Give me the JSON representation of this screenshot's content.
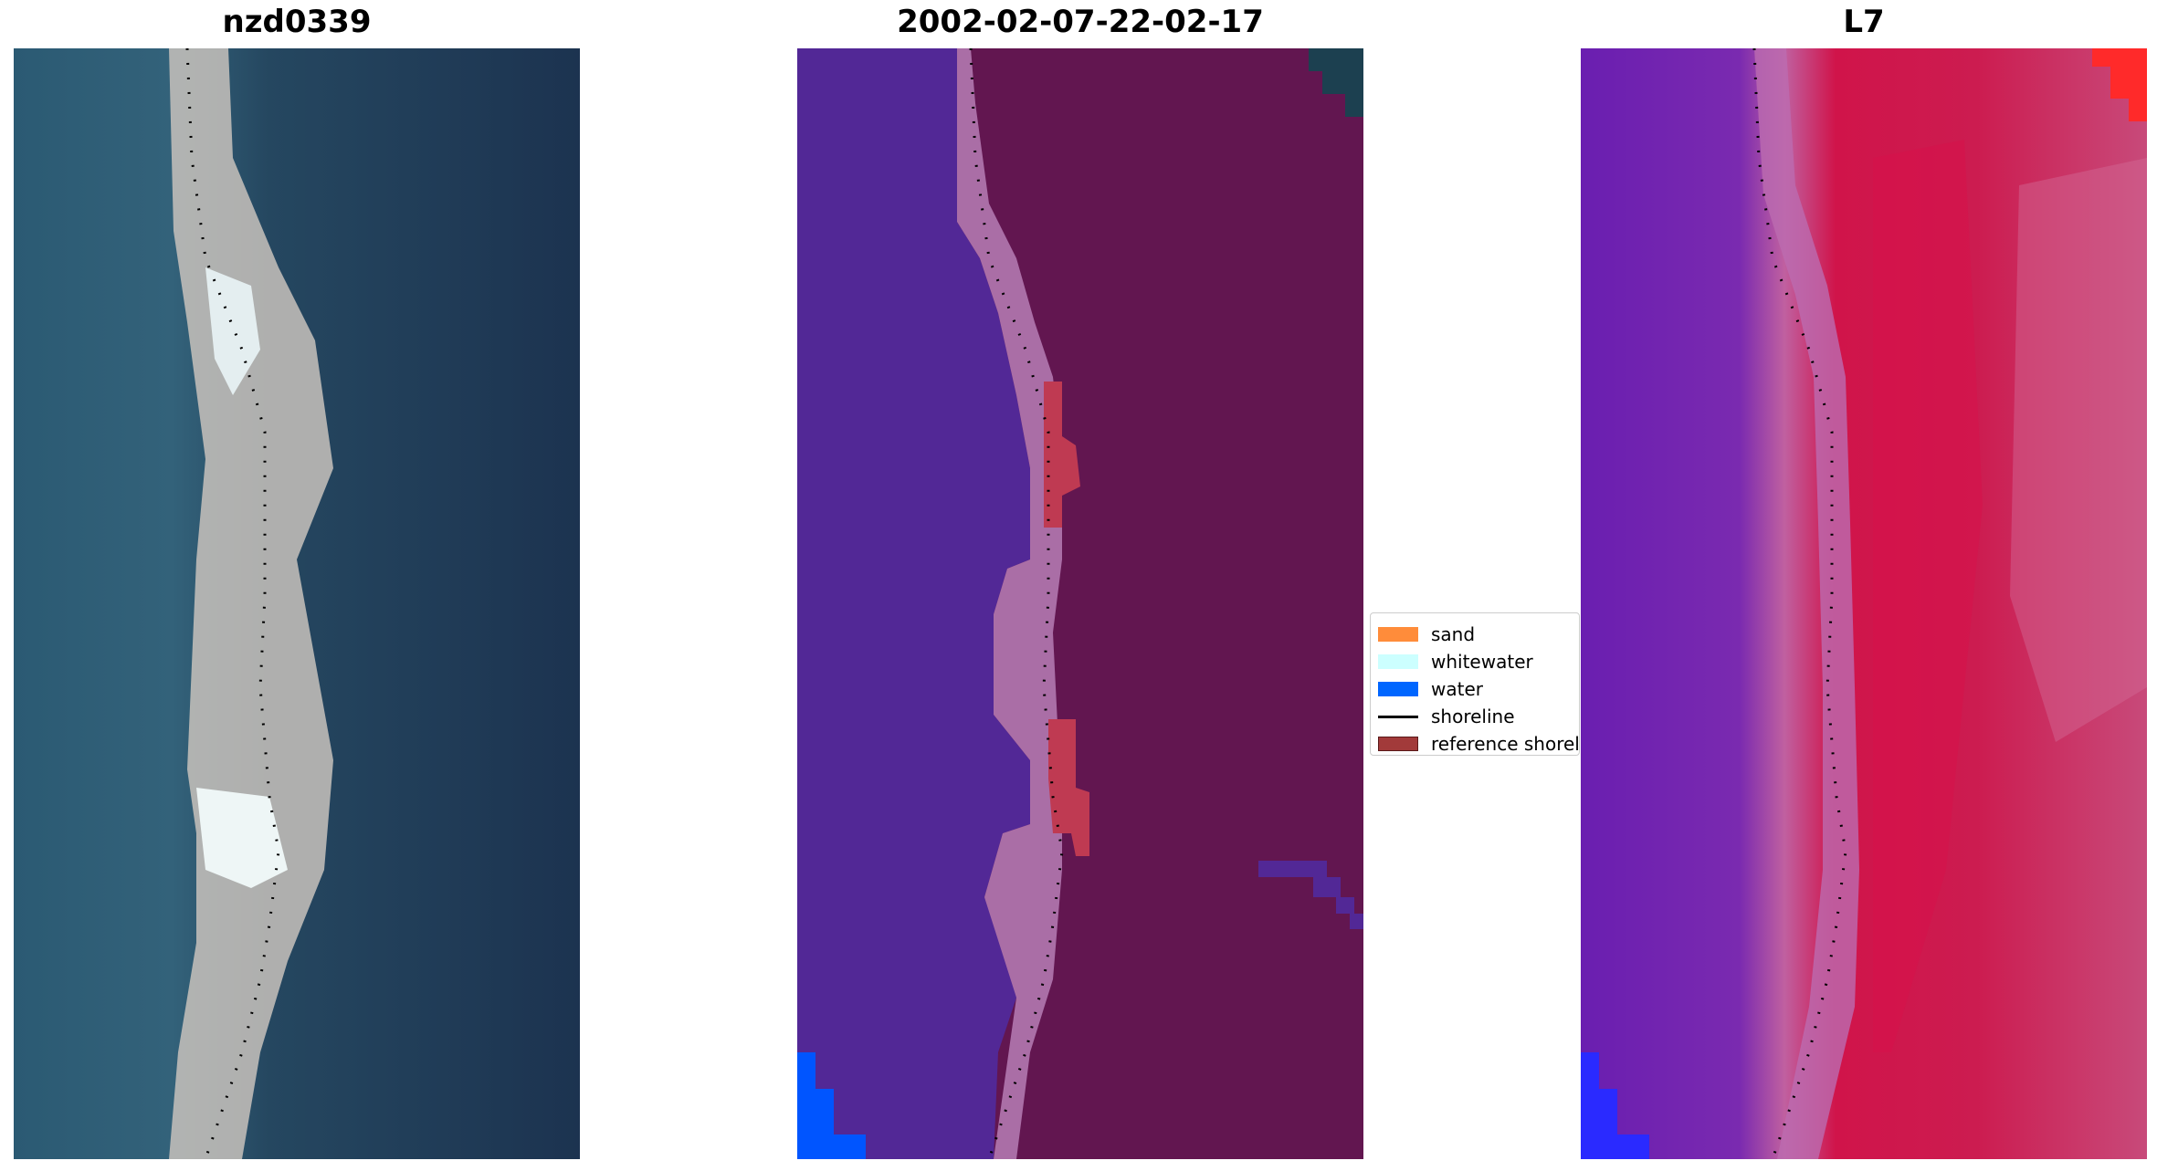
{
  "panels": [
    {
      "title": "nzd0339"
    },
    {
      "title": "2002-02-07-22-02-17"
    },
    {
      "title": "L7"
    }
  ],
  "legend": {
    "items": [
      {
        "label": "sand",
        "color": "#ff8c3a",
        "kind": "patch"
      },
      {
        "label": "whitewater",
        "color": "#ccffff",
        "kind": "patch"
      },
      {
        "label": "water",
        "color": "#0066ff",
        "kind": "patch"
      },
      {
        "label": "shoreline",
        "color": "#000000",
        "kind": "line"
      },
      {
        "label": "reference shoreline buffer",
        "color": "#a23a3a",
        "kind": "patch"
      }
    ]
  },
  "colors": {
    "rgb_water": "#2a5670",
    "rgb_land": "#1f3550",
    "rgb_beach": "#c8c0b8",
    "class_water": "#522896",
    "class_land": "#621650",
    "class_beach_overlay": "#aa6ea6",
    "class_ref_buffer": "#bf3a52",
    "class_water_pixels": "#0055ff",
    "nir_water": "#6e1fb3",
    "nir_land": "#d0144a",
    "nir_beach": "#c060a0"
  }
}
